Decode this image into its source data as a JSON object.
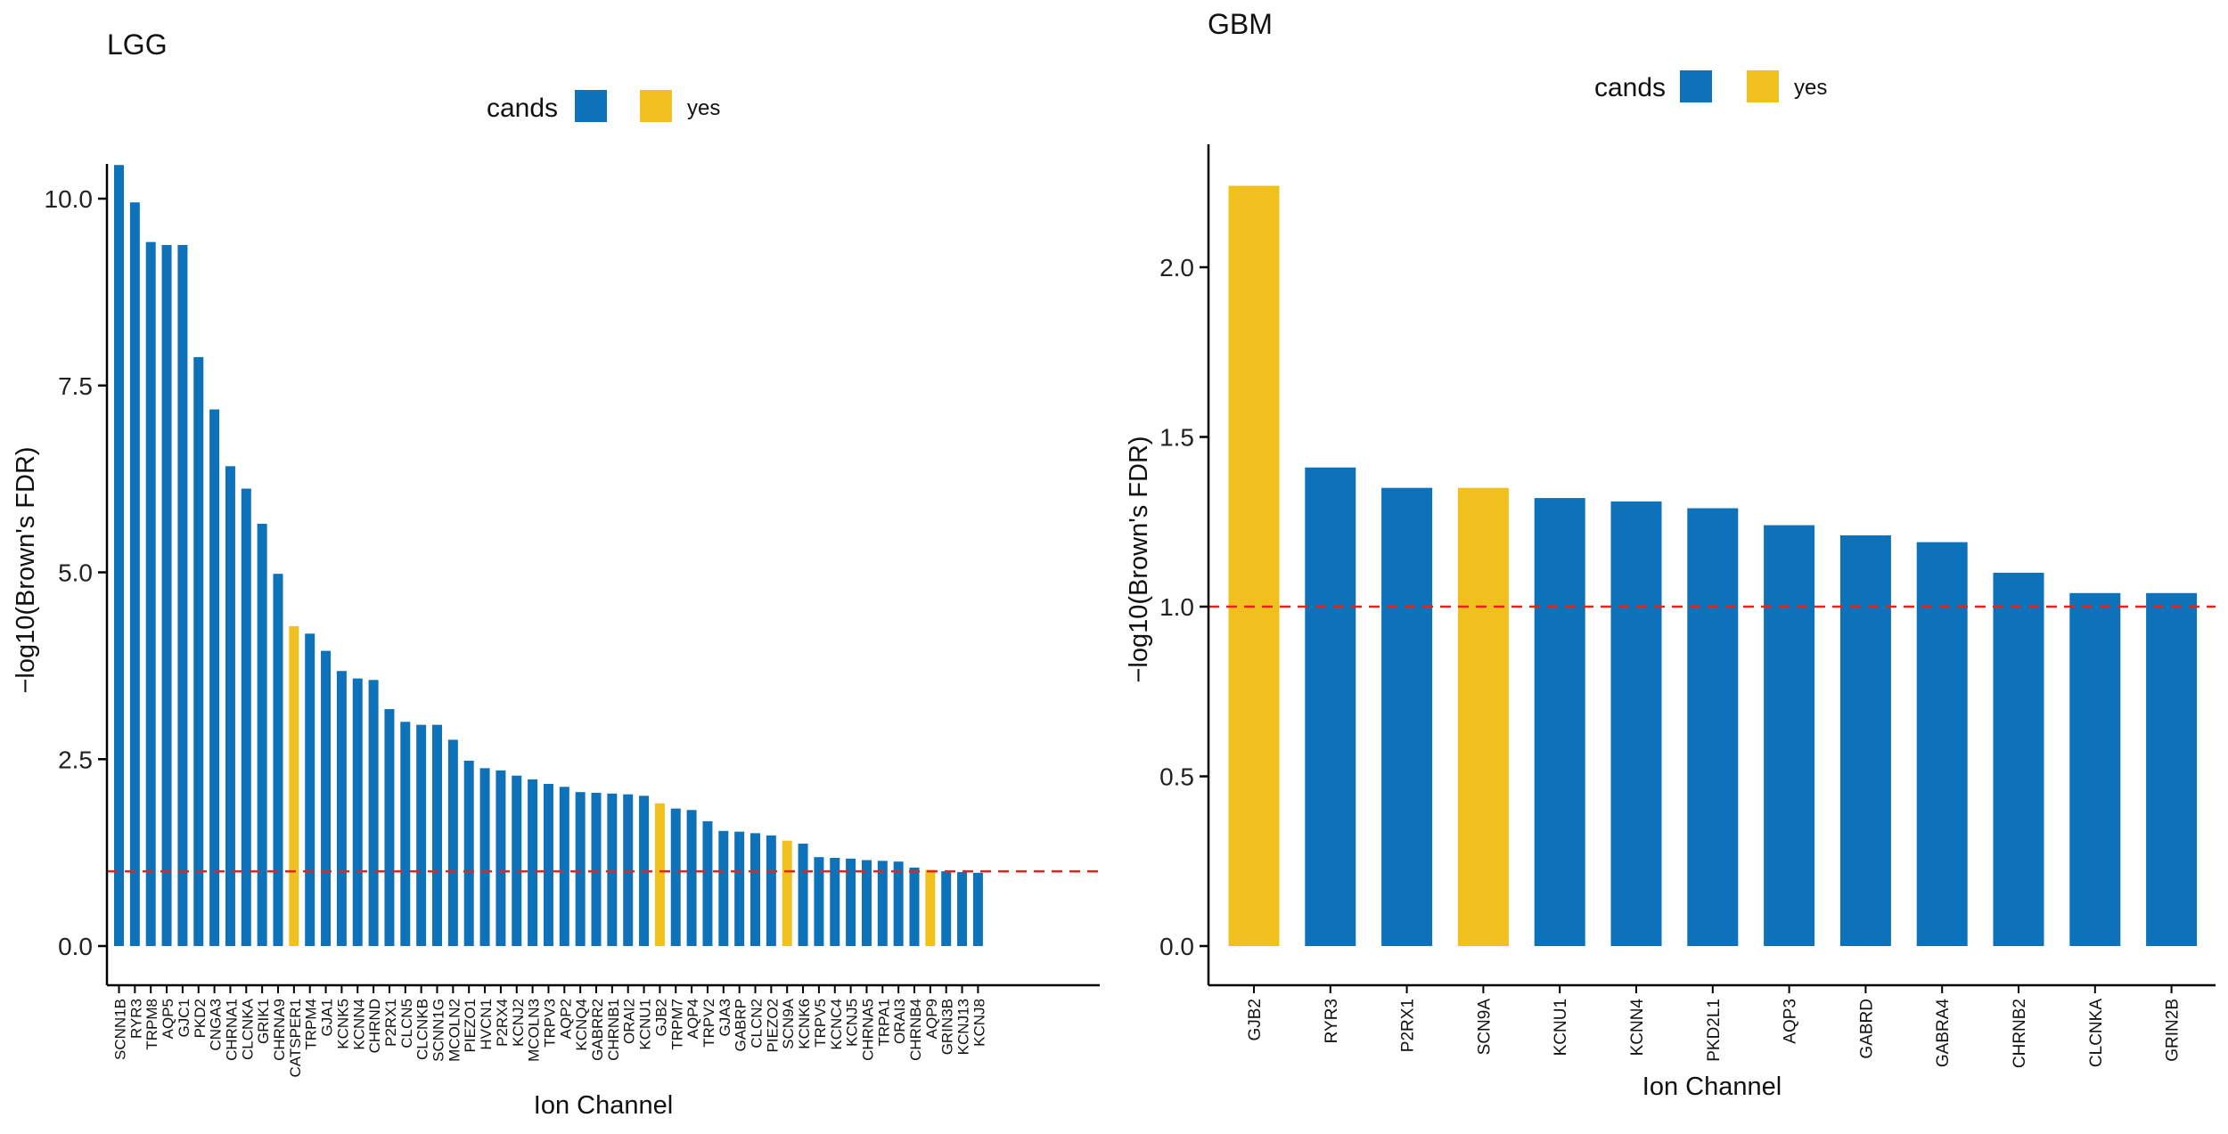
{
  "chart_data": [
    {
      "type": "bar",
      "title": "LGG",
      "xlabel": "Ion Channel",
      "ylabel": "−log10(Brown's FDR)",
      "ylim": [
        0,
        10.5
      ],
      "yticks": [
        "0.0",
        "2.5",
        "5.0",
        "7.5",
        "10.0"
      ],
      "threshold": 1.0,
      "legend": {
        "title": "cands",
        "entries": [
          "",
          "yes"
        ],
        "colors": [
          "#0e72ba",
          "#efc01e"
        ],
        "placement": "top"
      },
      "categories": [
        "SCNN1B",
        "RYR3",
        "TRPM8",
        "AQP5",
        "GJC1",
        "PKD2",
        "CNGA3",
        "CHRNA1",
        "CLCNKA",
        "GRIK1",
        "CHRNA9",
        "CATSPER1",
        "TRPM4",
        "GJA1",
        "KCNK5",
        "KCNN4",
        "CHRND",
        "P2RX1",
        "CLCN5",
        "CLCNKB",
        "SCNN1G",
        "MCOLN2",
        "PIEZO1",
        "HVCN1",
        "P2RX4",
        "KCNJ2",
        "MCOLN3",
        "TRPV3",
        "AQP2",
        "KCNQ4",
        "GABRR2",
        "CHRNB1",
        "ORAI2",
        "KCNU1",
        "GJB2",
        "TRPM7",
        "AQP4",
        "TRPV2",
        "GJA3",
        "GABRP",
        "CLCN2",
        "PIEZO2",
        "SCN9A",
        "KCNK6",
        "TRPV5",
        "KCNC4",
        "KCNJ5",
        "CHRNA5",
        "TRPA1",
        "ORAI3",
        "CHRNB4",
        "AQP9",
        "GRIN3B",
        "KCNJ13",
        "KCNJ8"
      ],
      "values": [
        10.45,
        9.95,
        9.42,
        9.38,
        9.38,
        7.88,
        7.18,
        6.42,
        6.12,
        5.65,
        4.98,
        4.28,
        4.18,
        3.95,
        3.68,
        3.58,
        3.56,
        3.17,
        3.0,
        2.96,
        2.96,
        2.76,
        2.48,
        2.38,
        2.35,
        2.28,
        2.23,
        2.17,
        2.13,
        2.06,
        2.05,
        2.04,
        2.03,
        2.01,
        1.91,
        1.84,
        1.82,
        1.67,
        1.54,
        1.53,
        1.51,
        1.48,
        1.41,
        1.37,
        1.19,
        1.18,
        1.17,
        1.15,
        1.14,
        1.13,
        1.05,
        1.02,
        1.0,
        0.99,
        0.98
      ],
      "highlight": [
        "CATSPER1",
        "GJB2",
        "SCN9A",
        "AQP9"
      ]
    },
    {
      "type": "bar",
      "title": "GBM",
      "xlabel": "Ion Channel",
      "ylabel": "−log10(Brown's FDR)",
      "ylim": [
        0,
        2.3
      ],
      "yticks": [
        "0.0",
        "0.5",
        "1.0",
        "1.5",
        "2.0"
      ],
      "threshold": 1.0,
      "legend": {
        "title": "cands",
        "entries": [
          "",
          "yes"
        ],
        "colors": [
          "#0e72ba",
          "#efc01e"
        ],
        "placement": "top"
      },
      "categories": [
        "GJB2",
        "RYR3",
        "P2RX1",
        "SCN9A",
        "KCNU1",
        "KCNN4",
        "PKD2L1",
        "AQP3",
        "GABRD",
        "GABRA4",
        "CHRNB2",
        "CLCNKA",
        "GRIN2B"
      ],
      "values": [
        2.24,
        1.41,
        1.35,
        1.35,
        1.32,
        1.31,
        1.29,
        1.24,
        1.21,
        1.19,
        1.1,
        1.04,
        1.04
      ],
      "highlight": [
        "GJB2",
        "SCN9A"
      ]
    }
  ]
}
